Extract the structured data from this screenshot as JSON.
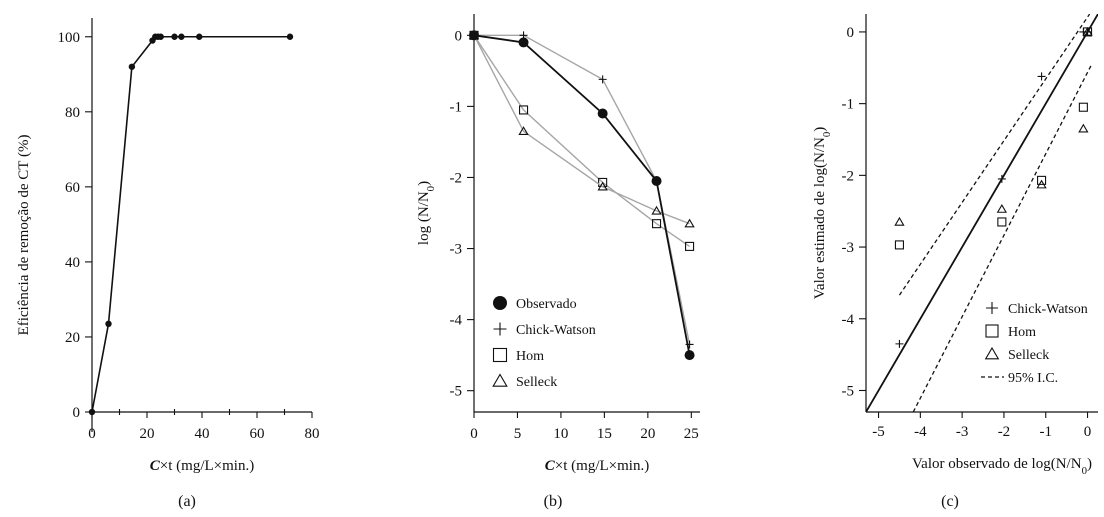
{
  "colors": {
    "ink": "#111111",
    "model_line": "#a6a6a6"
  },
  "chart_data": [
    {
      "panel": "(a)",
      "type": "line",
      "xlabel": {
        "italic": "C",
        "rest": "×t (mg/L×min.)"
      },
      "ylabel": "Eficiência de remoção de CT (%)",
      "xlim": [
        0,
        80
      ],
      "ylim": [
        0,
        105
      ],
      "xticks": [
        "0",
        "20",
        "40",
        "60",
        "80"
      ],
      "yticks": [
        "0",
        "20",
        "40",
        "60",
        "80",
        "100"
      ],
      "grid": false,
      "series": [
        {
          "x": [
            0,
            6,
            14.5,
            22,
            23,
            24,
            25,
            30,
            32.5,
            39,
            72
          ],
          "y": [
            0,
            23.5,
            92,
            99,
            100,
            100,
            100,
            100,
            100,
            100,
            100
          ]
        }
      ]
    },
    {
      "panel": "(b)",
      "type": "line",
      "xlabel": {
        "italic": "C",
        "rest": "×t (mg/L×min.)"
      },
      "ylabel": "log (N/N0)",
      "xlim": [
        0,
        26
      ],
      "ylim": [
        -5.3,
        0.3
      ],
      "xticks": [
        "0",
        "5",
        "10",
        "15",
        "20",
        "25"
      ],
      "yticks": [
        "0",
        "-1",
        "-2",
        "-3",
        "-4",
        "-5"
      ],
      "grid": false,
      "legend_position": "lower-left",
      "series": [
        {
          "name": "Observado",
          "marker": "circle",
          "x": [
            0,
            5.7,
            14.8,
            21,
            24.8
          ],
          "y": [
            0,
            -0.1,
            -1.1,
            -2.05,
            -4.5
          ]
        },
        {
          "name": "Chick-Watson",
          "marker": "plus",
          "x": [
            0,
            5.7,
            14.8,
            21,
            24.8
          ],
          "y": [
            0,
            0,
            -0.62,
            -2.05,
            -4.35
          ]
        },
        {
          "name": "Hom",
          "marker": "square",
          "x": [
            0,
            5.7,
            14.8,
            21,
            24.8
          ],
          "y": [
            0,
            -1.05,
            -2.07,
            -2.65,
            -2.97
          ]
        },
        {
          "name": "Selleck",
          "marker": "triangle",
          "x": [
            0,
            5.7,
            14.8,
            21,
            24.8
          ],
          "y": [
            0,
            -1.35,
            -2.13,
            -2.47,
            -2.65
          ]
        }
      ]
    },
    {
      "panel": "(c)",
      "type": "scatter",
      "xlabel": "Valor observado de log(N/N0)",
      "ylabel": "Valor estimado de log(N/N0)",
      "xlim": [
        -5.3,
        0.25
      ],
      "ylim": [
        -5.3,
        0.25
      ],
      "xticks": [
        "-5",
        "-4",
        "-3",
        "-2",
        "-1",
        "0"
      ],
      "yticks": [
        "0",
        "-1",
        "-2",
        "-3",
        "-4",
        "-5"
      ],
      "grid": false,
      "legend_position": "lower-right",
      "series": [
        {
          "name": "Chick-Watson",
          "marker": "plus",
          "x": [
            0,
            -0.1,
            -1.1,
            -2.05,
            -4.5
          ],
          "y": [
            0,
            0,
            -0.62,
            -2.05,
            -4.35
          ]
        },
        {
          "name": "Hom",
          "marker": "square",
          "x": [
            0,
            -0.1,
            -1.1,
            -2.05,
            -4.5
          ],
          "y": [
            0,
            -1.05,
            -2.07,
            -2.65,
            -2.97
          ]
        },
        {
          "name": "Selleck",
          "marker": "triangle",
          "x": [
            0,
            -0.1,
            -1.1,
            -2.05,
            -4.5
          ],
          "y": [
            0,
            -1.35,
            -2.13,
            -2.47,
            -2.65
          ]
        }
      ],
      "reference_lines": [
        {
          "style": "solid",
          "x": [
            -5.3,
            0.25
          ],
          "y": [
            -5.3,
            0.25
          ]
        },
        {
          "name": "95% I.C.",
          "style": "dashed",
          "x": [
            -4.5,
            0.05
          ],
          "y": [
            -3.67,
            0.25
          ]
        },
        {
          "style": "dashed",
          "x": [
            -4.17,
            0.1
          ],
          "y": [
            -5.3,
            -0.45
          ]
        }
      ]
    }
  ]
}
